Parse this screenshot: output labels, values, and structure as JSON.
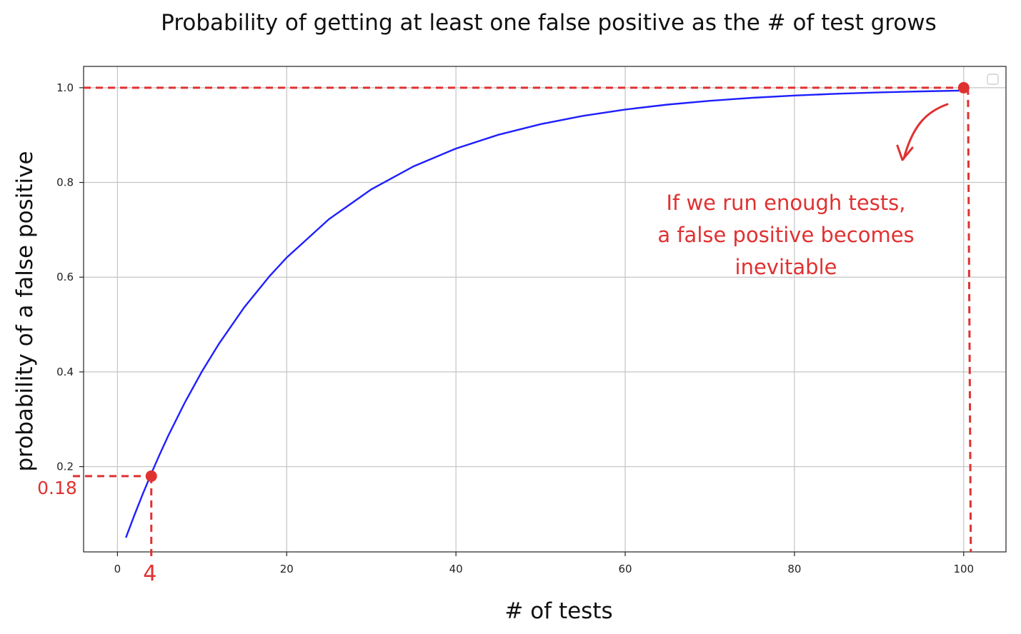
{
  "chart_data": {
    "type": "line",
    "title": "Probability of getting at least one false positive as the # of test grows",
    "xlabel": "# of tests",
    "ylabel": "probability of a false positive",
    "xlim": [
      -4,
      105
    ],
    "ylim": [
      0.02,
      1.045
    ],
    "x_ticks": [
      0,
      20,
      40,
      60,
      80,
      100
    ],
    "y_ticks": [
      0.2,
      0.4,
      0.6,
      0.8,
      1.0
    ],
    "x_tick_labels": [
      "0",
      "20",
      "40",
      "60",
      "80",
      "100"
    ],
    "y_tick_labels": [
      "0.2",
      "0.4",
      "0.6",
      "0.8",
      "1.0"
    ],
    "grid": true,
    "legend": "top-right (empty)",
    "series": [
      {
        "color": "#1f1fff",
        "x": [
          1,
          2,
          3,
          4,
          5,
          6,
          8,
          10,
          12,
          15,
          18,
          20,
          25,
          30,
          35,
          40,
          45,
          50,
          55,
          60,
          65,
          70,
          75,
          80,
          85,
          90,
          95,
          100
        ],
        "y": [
          0.05,
          0.0975,
          0.1426,
          0.1855,
          0.2262,
          0.2649,
          0.3366,
          0.4013,
          0.4596,
          0.5367,
          0.6028,
          0.6415,
          0.7226,
          0.7854,
          0.8339,
          0.8715,
          0.9006,
          0.9231,
          0.9405,
          0.9539,
          0.9644,
          0.9724,
          0.9787,
          0.9835,
          0.9872,
          0.9901,
          0.9923,
          0.9941
        ]
      }
    ],
    "annotations": {
      "point_low": {
        "x": 4,
        "y": 0.18,
        "x_text": "4",
        "y_text": "0.18"
      },
      "point_high": {
        "x": 100,
        "y": 1.0
      },
      "callout_lines": [
        "If we run enough tests,",
        "a false positive becomes",
        "inevitable"
      ],
      "color": "#e03131"
    }
  }
}
